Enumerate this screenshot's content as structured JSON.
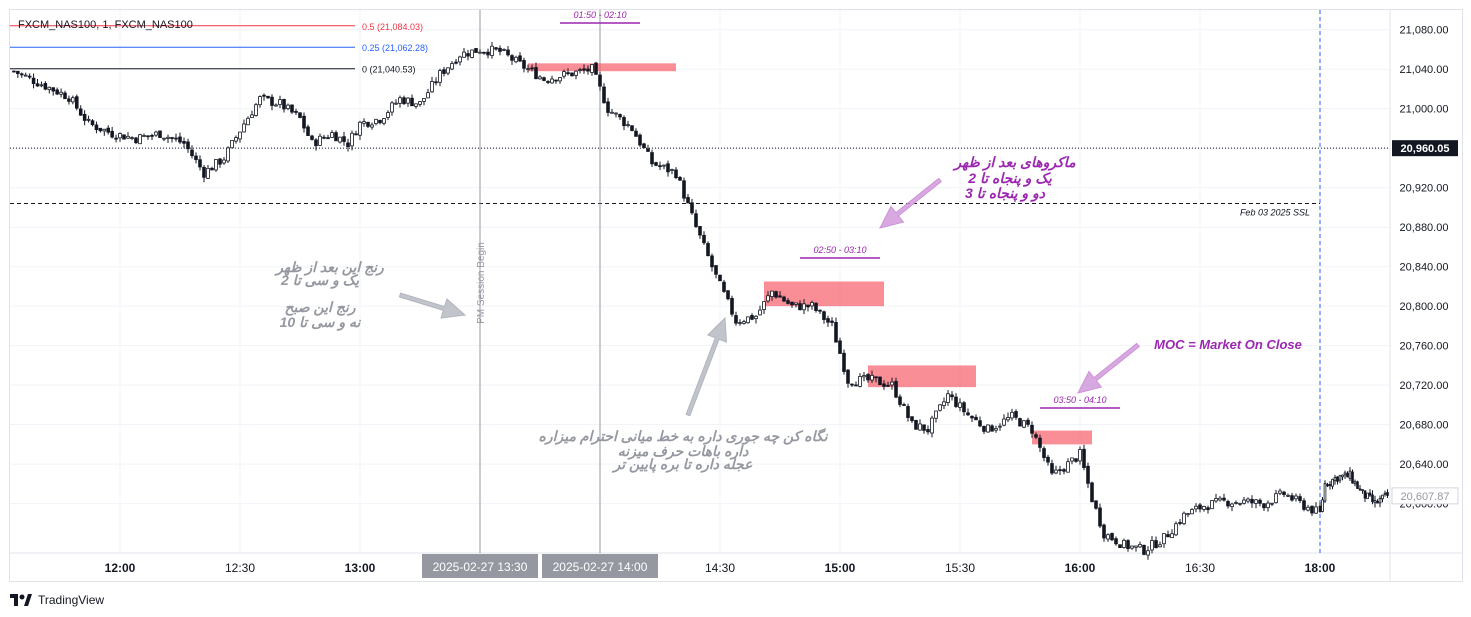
{
  "symbol_label": "FXCM_NAS100, 1, FXCM_NAS100",
  "branding": {
    "name": "TradingView"
  },
  "fib_levels": [
    {
      "label": "0.5 (21,084.03)",
      "value": 21084.03,
      "color": "#f23645"
    },
    {
      "label": "0.25 (21,062.28)",
      "value": 21062.28,
      "color": "#2962ff"
    },
    {
      "label": "0 (21,040.53)",
      "value": 21040.53,
      "color": "#131722"
    }
  ],
  "price_axis": {
    "min": 20550,
    "max": 21100,
    "ticks": [
      "21,080.00",
      "21,040.00",
      "21,000.00",
      "20,960.00",
      "20,920.00",
      "20,880.00",
      "20,840.00",
      "20,800.00",
      "20,760.00",
      "20,720.00",
      "20,680.00",
      "20,640.00",
      "20,600.00"
    ],
    "tick_values": [
      21080,
      21040,
      21000,
      20960,
      20920,
      20880,
      20840,
      20800,
      20760,
      20720,
      20680,
      20640,
      20600
    ],
    "current_price_label": "20,960.05",
    "current_price": 20960.05,
    "last_price_label": "20,607.87",
    "last_price": 20607.87
  },
  "time_axis": {
    "ticks": [
      {
        "label": "12:00",
        "minute": 720
      },
      {
        "label": "12:30",
        "minute": 750
      },
      {
        "label": "13:00",
        "minute": 780
      },
      {
        "label": "14:30",
        "minute": 870
      },
      {
        "label": "15:00",
        "minute": 900
      },
      {
        "label": "15:30",
        "minute": 930
      },
      {
        "label": "16:00",
        "minute": 960
      },
      {
        "label": "16:30",
        "minute": 990
      },
      {
        "label": "18:00",
        "minute": 1020
      }
    ],
    "highlight_labels": [
      {
        "label": "2025-02-27   13:30",
        "minute": 810
      },
      {
        "label": "2025-02-27   14:00",
        "minute": 840
      }
    ],
    "bold_labels": [
      "12:00",
      "13:00",
      "15:00",
      "16:00",
      "18:00"
    ]
  },
  "reference_lines": {
    "dotted_price": 20960.05,
    "ssl_price": 20904,
    "ssl_label": "Feb 03 2025 SSL"
  },
  "session_line": {
    "minute": 810,
    "label": "PM Session Begin"
  },
  "time_windows": [
    {
      "label": "01:50 - 02:10",
      "minute_start": 830,
      "minute_end": 850
    },
    {
      "label": "02:50 - 03:10",
      "minute_start": 890,
      "minute_end": 910
    },
    {
      "label": "03:50 - 04:10",
      "minute_start": 950,
      "minute_end": 970
    }
  ],
  "zones": [
    {
      "minute_start": 822,
      "minute_end": 859,
      "high": 21046,
      "low": 21038
    },
    {
      "minute_start": 881,
      "minute_end": 911,
      "high": 20825,
      "low": 20800
    },
    {
      "minute_start": 907,
      "minute_end": 934,
      "high": 20740,
      "low": 20718
    },
    {
      "minute_start": 948,
      "minute_end": 963,
      "high": 20674,
      "low": 20660
    }
  ],
  "annotations": {
    "macros": [
      "ماکروهای بعد از ظهر",
      "یک و پنجاه تا 2",
      "دو و پنجاه تا 3"
    ],
    "range_pm": [
      "رنج این بعد از ظهر",
      "یک و سی تا 2"
    ],
    "range_am": [
      "رنج این صبح",
      "نه و سی تا 10"
    ],
    "midline": [
      "نگاه کن چه جوری داره به خط میانی احترام میزاره",
      "داره باهات حرف میزنه",
      "عجله داره تا بره پایین تر"
    ],
    "moc": "MOC = Market On Close"
  },
  "colors": {
    "up": "#131722",
    "down": "#131722",
    "zone": "#f7525f",
    "purple": "#9c27b0",
    "grey_text": "#9598a1"
  },
  "chart_data": {
    "type": "candlestick",
    "x_unit": "minutes since midnight (exchange time)",
    "x_range": [
      692,
      1048
    ],
    "y_range": [
      20550,
      21100
    ],
    "key_points": [
      {
        "minute": 693,
        "price": 21038
      },
      {
        "minute": 700,
        "price": 21025
      },
      {
        "minute": 707,
        "price": 21012
      },
      {
        "minute": 712,
        "price": 20985
      },
      {
        "minute": 718,
        "price": 20975
      },
      {
        "minute": 724,
        "price": 20970
      },
      {
        "minute": 730,
        "price": 20975
      },
      {
        "minute": 736,
        "price": 20965
      },
      {
        "minute": 741,
        "price": 20935
      },
      {
        "minute": 746,
        "price": 20950
      },
      {
        "minute": 751,
        "price": 20985
      },
      {
        "minute": 755,
        "price": 21010
      },
      {
        "minute": 760,
        "price": 21005
      },
      {
        "minute": 765,
        "price": 20990
      },
      {
        "minute": 768,
        "price": 20965
      },
      {
        "minute": 773,
        "price": 20975
      },
      {
        "minute": 777,
        "price": 20965
      },
      {
        "minute": 780,
        "price": 20985
      },
      {
        "minute": 785,
        "price": 20990
      },
      {
        "minute": 790,
        "price": 21010
      },
      {
        "minute": 795,
        "price": 21005
      },
      {
        "minute": 800,
        "price": 21035
      },
      {
        "minute": 805,
        "price": 21055
      },
      {
        "minute": 810,
        "price": 21060
      },
      {
        "minute": 815,
        "price": 21058
      },
      {
        "minute": 820,
        "price": 21045
      },
      {
        "minute": 826,
        "price": 21030
      },
      {
        "minute": 832,
        "price": 21035
      },
      {
        "minute": 838,
        "price": 21040
      },
      {
        "minute": 842,
        "price": 21000
      },
      {
        "minute": 848,
        "price": 20980
      },
      {
        "minute": 853,
        "price": 20945
      },
      {
        "minute": 859,
        "price": 20935
      },
      {
        "minute": 864,
        "price": 20880
      },
      {
        "minute": 869,
        "price": 20830
      },
      {
        "minute": 874,
        "price": 20785
      },
      {
        "minute": 879,
        "price": 20790
      },
      {
        "minute": 883,
        "price": 20815
      },
      {
        "minute": 888,
        "price": 20800
      },
      {
        "minute": 893,
        "price": 20800
      },
      {
        "minute": 898,
        "price": 20780
      },
      {
        "minute": 902,
        "price": 20725
      },
      {
        "minute": 908,
        "price": 20725
      },
      {
        "minute": 913,
        "price": 20720
      },
      {
        "minute": 918,
        "price": 20680
      },
      {
        "minute": 922,
        "price": 20675
      },
      {
        "minute": 927,
        "price": 20710
      },
      {
        "minute": 932,
        "price": 20690
      },
      {
        "minute": 937,
        "price": 20675
      },
      {
        "minute": 943,
        "price": 20688
      },
      {
        "minute": 948,
        "price": 20675
      },
      {
        "minute": 953,
        "price": 20628
      },
      {
        "minute": 957,
        "price": 20640
      },
      {
        "minute": 960,
        "price": 20650
      },
      {
        "minute": 963,
        "price": 20605
      },
      {
        "minute": 966,
        "price": 20570
      },
      {
        "minute": 971,
        "price": 20558
      },
      {
        "minute": 976,
        "price": 20553
      },
      {
        "minute": 981,
        "price": 20565
      },
      {
        "minute": 986,
        "price": 20588
      },
      {
        "minute": 991,
        "price": 20598
      },
      {
        "minute": 996,
        "price": 20602
      },
      {
        "minute": 1001,
        "price": 20602
      },
      {
        "minute": 1006,
        "price": 20600
      },
      {
        "minute": 1011,
        "price": 20610
      },
      {
        "minute": 1016,
        "price": 20598
      },
      {
        "minute": 1020,
        "price": 20590
      },
      {
        "minute": 1022,
        "price": 20620
      },
      {
        "minute": 1027,
        "price": 20627
      },
      {
        "minute": 1032,
        "price": 20628
      },
      {
        "minute": 1037,
        "price": 20610
      },
      {
        "minute": 1042,
        "price": 20600
      },
      {
        "minute": 1047,
        "price": 20608
      }
    ]
  }
}
